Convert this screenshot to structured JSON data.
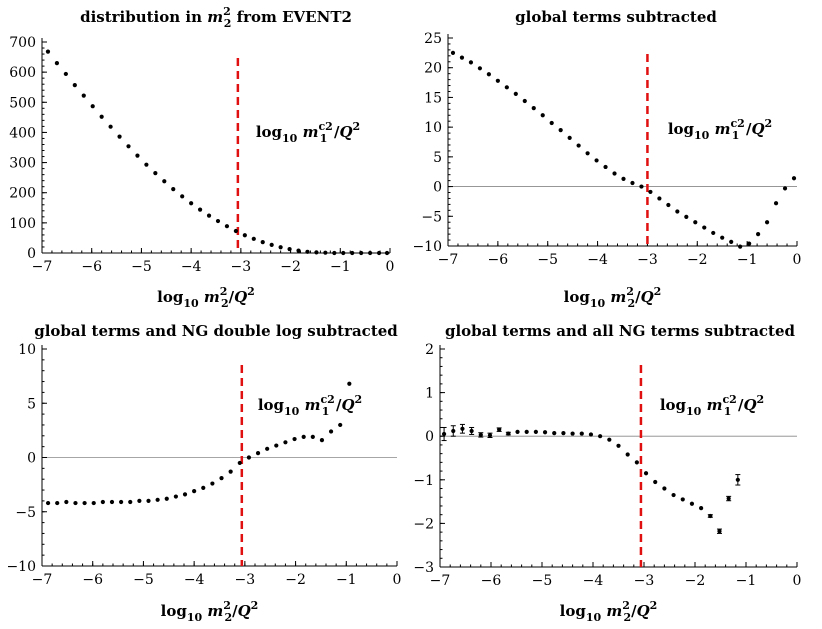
{
  "chart_data": [
    {
      "type": "scatter",
      "title": "distribution in m_2^2 from EVENT2",
      "title_parts": {
        "prefix": "distribution in ",
        "var": "m",
        "sub": "2",
        "sup": "2",
        "suffix": " from EVENT2"
      },
      "xlabel": {
        "log": "log",
        "logsub": "10",
        "var": "m",
        "sub": "2",
        "sup": "2",
        "tail": "/Q",
        "tailsup": "2"
      },
      "annotation": {
        "log": "log",
        "logsub": "10",
        "var": "m",
        "sub": "1",
        "sup": "c2",
        "tail": "/Q",
        "tailsup": "2"
      },
      "xlim": [
        -7,
        0
      ],
      "ylim": [
        0,
        700
      ],
      "xticks": [
        -7,
        -6,
        -5,
        -4,
        -3,
        -2,
        -1,
        0
      ],
      "xtick_labels": [
        "−7",
        "−6",
        "−5",
        "−4",
        "−3",
        "−2",
        "−1",
        "0"
      ],
      "yticks": [
        0,
        100,
        200,
        300,
        400,
        500,
        600,
        700
      ],
      "ytick_labels": [
        "0",
        "100",
        "200",
        "300",
        "400",
        "500",
        "600",
        "700"
      ],
      "vline": -3.06,
      "zero_line": false,
      "x": [
        -6.88,
        -6.7,
        -6.52,
        -6.34,
        -6.16,
        -5.98,
        -5.8,
        -5.62,
        -5.44,
        -5.26,
        -5.08,
        -4.9,
        -4.72,
        -4.54,
        -4.36,
        -4.18,
        -4.0,
        -3.82,
        -3.64,
        -3.46,
        -3.28,
        -3.1,
        -2.92,
        -2.74,
        -2.56,
        -2.38,
        -2.2,
        -2.02,
        -1.84,
        -1.66,
        -1.48,
        -1.3,
        -1.12,
        -0.94,
        -0.76,
        -0.58,
        -0.4,
        -0.22,
        -0.06
      ],
      "y": [
        668,
        630,
        594,
        557,
        522,
        487,
        452,
        419,
        386,
        354,
        323,
        293,
        265,
        238,
        212,
        188,
        165,
        144,
        124,
        106,
        89,
        73,
        59,
        47,
        36,
        27,
        19,
        13,
        8,
        4,
        2,
        1,
        0,
        0,
        0,
        0,
        0,
        0,
        0
      ]
    },
    {
      "type": "scatter",
      "title": "global terms subtracted",
      "annotation": {
        "log": "log",
        "logsub": "10",
        "var": "m",
        "sub": "1",
        "sup": "c2",
        "tail": "/Q",
        "tailsup": "2"
      },
      "xlabel": {
        "log": "log",
        "logsub": "10",
        "var": "m",
        "sub": "2",
        "sup": "2",
        "tail": "/Q",
        "tailsup": "2"
      },
      "xlim": [
        -7,
        0
      ],
      "ylim": [
        -10,
        25
      ],
      "xticks": [
        -7,
        -6,
        -5,
        -4,
        -3,
        -2,
        -1,
        0
      ],
      "xtick_labels": [
        "−7",
        "−6",
        "−5",
        "−4",
        "−3",
        "−2",
        "−1",
        "0"
      ],
      "yticks": [
        -10,
        -5,
        0,
        5,
        10,
        15,
        20,
        25
      ],
      "ytick_labels": [
        "−10",
        "−5",
        "0",
        "5",
        "10",
        "15",
        "20",
        "25"
      ],
      "vline": -3.0,
      "zero_line": true,
      "x": [
        -6.9,
        -6.72,
        -6.54,
        -6.36,
        -6.18,
        -6.0,
        -5.82,
        -5.64,
        -5.46,
        -5.28,
        -5.1,
        -4.92,
        -4.74,
        -4.56,
        -4.38,
        -4.2,
        -4.02,
        -3.84,
        -3.66,
        -3.48,
        -3.3,
        -3.12,
        -2.94,
        -2.76,
        -2.58,
        -2.4,
        -2.22,
        -2.04,
        -1.86,
        -1.68,
        -1.5,
        -1.32,
        -1.14,
        -0.96,
        -0.78,
        -0.6,
        -0.42,
        -0.24,
        -0.06
      ],
      "y": [
        22.5,
        21.7,
        20.9,
        19.9,
        18.9,
        17.8,
        16.7,
        15.6,
        14.4,
        13.2,
        12.0,
        10.7,
        9.5,
        8.2,
        6.9,
        5.6,
        4.4,
        3.3,
        2.2,
        1.3,
        0.6,
        0.0,
        -0.9,
        -2.0,
        -3.1,
        -4.2,
        -5.1,
        -6.0,
        -6.9,
        -7.8,
        -8.6,
        -9.3,
        -10.1,
        -9.6,
        -8.0,
        -6.0,
        -2.8,
        -0.3,
        1.4
      ]
    },
    {
      "type": "scatter",
      "title": "global terms and NG double log subtracted",
      "annotation": {
        "log": "log",
        "logsub": "10",
        "var": "m",
        "sub": "1",
        "sup": "c2",
        "tail": "/Q",
        "tailsup": "2"
      },
      "xlabel": {
        "log": "log",
        "logsub": "10",
        "var": "m",
        "sub": "2",
        "sup": "2",
        "tail": "/Q",
        "tailsup": "2"
      },
      "xlim": [
        -7,
        0
      ],
      "ylim": [
        -10,
        10
      ],
      "xticks": [
        -7,
        -6,
        -5,
        -4,
        -3,
        -2,
        -1,
        0
      ],
      "xtick_labels": [
        "−7",
        "−6",
        "−5",
        "−4",
        "−3",
        "−2",
        "−1",
        "0"
      ],
      "yticks": [
        -10,
        -5,
        0,
        5,
        10
      ],
      "ytick_labels": [
        "−10",
        "−5",
        "0",
        "5",
        "10"
      ],
      "vline": -3.06,
      "zero_line": true,
      "x": [
        -6.88,
        -6.7,
        -6.52,
        -6.34,
        -6.16,
        -5.98,
        -5.8,
        -5.62,
        -5.44,
        -5.26,
        -5.08,
        -4.9,
        -4.72,
        -4.54,
        -4.36,
        -4.18,
        -4.0,
        -3.82,
        -3.64,
        -3.46,
        -3.28,
        -3.1,
        -2.92,
        -2.74,
        -2.56,
        -2.38,
        -2.2,
        -2.02,
        -1.84,
        -1.66,
        -1.48,
        -1.3,
        -1.12,
        -0.94
      ],
      "y": [
        -4.2,
        -4.2,
        -4.1,
        -4.2,
        -4.2,
        -4.2,
        -4.1,
        -4.1,
        -4.1,
        -4.1,
        -4.0,
        -4.0,
        -3.9,
        -3.8,
        -3.6,
        -3.4,
        -3.1,
        -2.8,
        -2.4,
        -1.9,
        -1.3,
        -0.5,
        0.0,
        0.4,
        0.8,
        1.1,
        1.4,
        1.7,
        1.9,
        1.9,
        1.6,
        2.4,
        3.0,
        6.8
      ]
    },
    {
      "type": "scatter",
      "title": "global terms and all NG terms subtracted",
      "annotation": {
        "log": "log",
        "logsub": "10",
        "var": "m",
        "sub": "1",
        "sup": "c2",
        "tail": "/Q",
        "tailsup": "2"
      },
      "xlabel": {
        "log": "log",
        "logsub": "10",
        "var": "m",
        "sub": "2",
        "sup": "2",
        "tail": "/Q",
        "tailsup": "2"
      },
      "xlim": [
        -7,
        0
      ],
      "ylim": [
        -3,
        2
      ],
      "xticks": [
        -7,
        -6,
        -5,
        -4,
        -3,
        -2,
        -1,
        0
      ],
      "xtick_labels": [
        "−7",
        "−6",
        "−5",
        "−4",
        "−3",
        "−2",
        "−1",
        "0"
      ],
      "yticks": [
        -3,
        -2,
        -1,
        0,
        1,
        2
      ],
      "ytick_labels": [
        "−3",
        "−2",
        "−1",
        "0",
        "1",
        "2"
      ],
      "vline": -3.06,
      "zero_line": true,
      "x": [
        -6.92,
        -6.74,
        -6.56,
        -6.38,
        -6.2,
        -6.02,
        -5.84,
        -5.66,
        -5.48,
        -5.3,
        -5.12,
        -4.94,
        -4.76,
        -4.58,
        -4.4,
        -4.22,
        -4.04,
        -3.86,
        -3.68,
        -3.5,
        -3.32,
        -3.14,
        -2.96,
        -2.78,
        -2.6,
        -2.42,
        -2.24,
        -2.06,
        -1.88,
        -1.7,
        -1.52,
        -1.34,
        -1.16
      ],
      "y": [
        0.05,
        0.12,
        0.17,
        0.12,
        0.03,
        0.02,
        0.15,
        0.06,
        0.1,
        0.1,
        0.1,
        0.09,
        0.07,
        0.07,
        0.06,
        0.06,
        0.04,
        0.0,
        -0.08,
        -0.22,
        -0.42,
        -0.6,
        -0.85,
        -1.05,
        -1.2,
        -1.35,
        -1.45,
        -1.55,
        -1.65,
        -1.83,
        -2.18,
        -1.43,
        -1.0
      ],
      "yerr": [
        0.15,
        0.12,
        0.1,
        0.08,
        0.05,
        0.05,
        0.04,
        0.03,
        0.02,
        0.02,
        0.02,
        0.02,
        0.01,
        0.01,
        0.01,
        0.01,
        0.01,
        0.01,
        0.01,
        0.01,
        0.01,
        0.01,
        0.01,
        0.01,
        0.01,
        0.01,
        0.01,
        0.02,
        0.02,
        0.03,
        0.05,
        0.05,
        0.12
      ]
    }
  ]
}
